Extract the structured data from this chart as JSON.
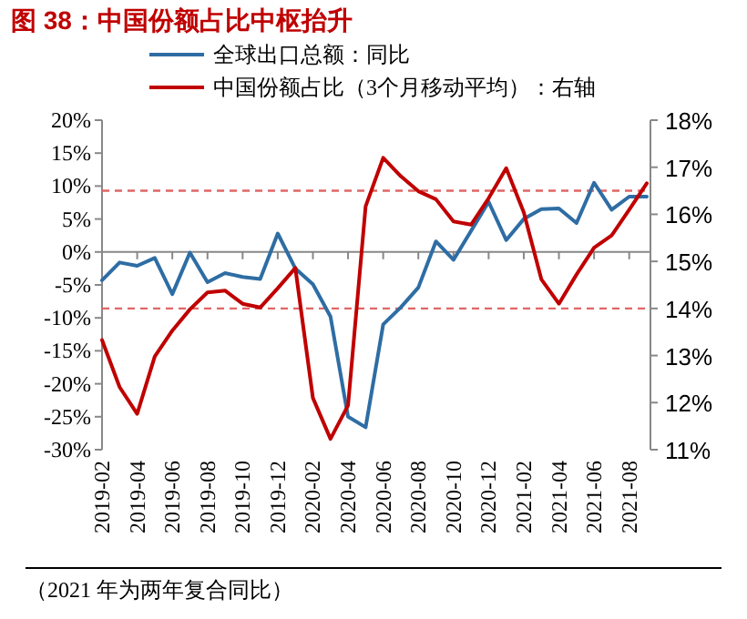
{
  "chart_data": {
    "type": "line",
    "title": "图 38：中国份额占比中枢抬升",
    "categories": [
      "2019-02",
      null,
      "2019-04",
      null,
      "2019-06",
      null,
      "2019-08",
      null,
      "2019-10",
      null,
      "2019-12",
      null,
      "2020-02",
      null,
      "2020-04",
      null,
      "2020-06",
      null,
      "2020-08",
      null,
      "2020-10",
      null,
      "2020-12",
      null,
      "2021-02",
      null,
      "2021-04",
      null,
      "2021-06",
      null,
      "2021-08",
      null
    ],
    "series": [
      {
        "name": "全球出口总额：同比",
        "color": "#2e6da4",
        "values": [
          -4.3,
          -1.6,
          -2.1,
          -0.9,
          -6.4,
          -0.1,
          -4.6,
          -3.2,
          -3.8,
          -4.1,
          2.8,
          -2.5,
          -4.9,
          -9.8,
          -25,
          -26.6,
          -11,
          -8.4,
          -5.4,
          1.6,
          -1.2,
          3.2,
          7.6,
          1.8,
          5.0,
          6.5,
          6.6,
          4.4,
          10.5,
          6.4,
          8.4,
          8.4
        ]
      },
      {
        "name": "中国份额占比（3个月移动平均）：右轴",
        "color": "#c00000",
        "axis": "y2",
        "values": [
          13.33,
          12.33,
          11.76,
          12.98,
          13.53,
          13.98,
          14.34,
          14.38,
          14.1,
          14.02,
          14.43,
          14.86,
          12.1,
          11.23,
          11.94,
          16.17,
          17.2,
          16.81,
          16.49,
          16.32,
          15.85,
          15.78,
          16.34,
          16.98,
          16.04,
          14.62,
          14.1,
          14.72,
          15.29,
          15.55,
          16.1,
          16.66
        ]
      }
    ],
    "ylim": [
      -30,
      20
    ],
    "yticks": [
      {
        "value": -30,
        "label": "-30%"
      },
      {
        "value": -25,
        "label": "-25%"
      },
      {
        "value": -20,
        "label": "-20%"
      },
      {
        "value": -15,
        "label": "-15%"
      },
      {
        "value": -10,
        "label": "-10%"
      },
      {
        "value": -5,
        "label": "-5%"
      },
      {
        "value": 0,
        "label": "0%"
      },
      {
        "value": 5,
        "label": "5%"
      },
      {
        "value": 10,
        "label": "10%"
      },
      {
        "value": 15,
        "label": "15%"
      },
      {
        "value": 20,
        "label": "20%"
      }
    ],
    "y2lim": [
      11,
      18
    ],
    "y2ticks": [
      {
        "value": 11,
        "label": "11%"
      },
      {
        "value": 12,
        "label": "12%"
      },
      {
        "value": 13,
        "label": "13%"
      },
      {
        "value": 14,
        "label": "14%"
      },
      {
        "value": 15,
        "label": "15%"
      },
      {
        "value": 16,
        "label": "16%"
      },
      {
        "value": 17,
        "label": "17%"
      },
      {
        "value": 18,
        "label": "18%"
      }
    ],
    "ref_lines": [
      {
        "axis": "y2",
        "value": 16.5,
        "color": "#e06666",
        "line_style": "dashed"
      },
      {
        "axis": "y2",
        "value": 14,
        "color": "#e06666",
        "line_style": "dashed"
      }
    ],
    "legend": "top left",
    "grid": false,
    "marker": "none",
    "line_style": "solid",
    "annotations": [
      "（2021 年为两年复合同比）"
    ]
  }
}
